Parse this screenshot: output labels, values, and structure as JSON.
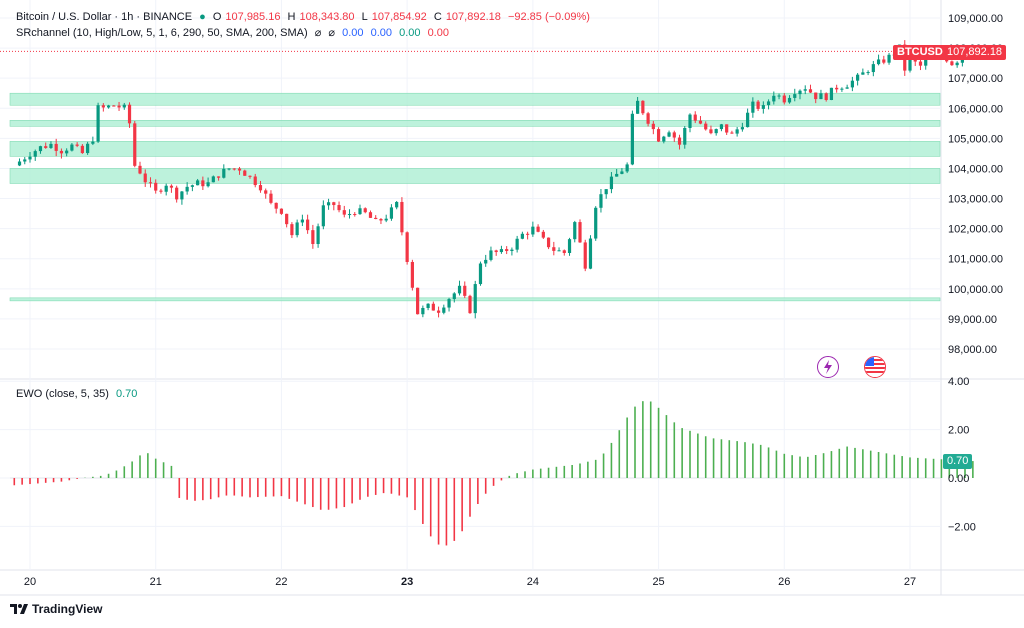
{
  "legend": {
    "symbol": "Bitcoin / U.S. Dollar · 1h · BINANCE",
    "open_label": "O",
    "open": "107,985.16",
    "high_label": "H",
    "high": "108,343.80",
    "low_label": "L",
    "low": "107,854.92",
    "close_label": "C",
    "close": "107,892.18",
    "change": "−92.85 (−0.09%)",
    "sr_label": "SRchannel (10, High/Low, 5, 1, 6, 290, 50, SMA, 200, SMA)",
    "sr_values": [
      "⌀",
      "⌀",
      "0.00",
      "0.00",
      "0.00",
      "0.00"
    ]
  },
  "ewo_legend": {
    "label": "EWO (close, 5, 35)",
    "value": "0.70"
  },
  "badges": {
    "ticker": "BTCUSD",
    "price": "107,892.18",
    "ewo": "0.70"
  },
  "footer": {
    "brand": "TradingView"
  },
  "colors": {
    "up": "#089981",
    "down": "#f23645",
    "ewo_pos": "#4caf50",
    "ewo_neg": "#f23645",
    "zone": "#b2f0d6"
  },
  "chart_data": [
    {
      "type": "candlestick",
      "title": "Bitcoin / U.S. Dollar · 1h · BINANCE",
      "ylim": [
        97500,
        109500
      ],
      "y_ticks": [
        "109,000.00",
        "108,000.00",
        "107,000.00",
        "106,000.00",
        "105,000.00",
        "104,000.00",
        "103,000.00",
        "102,000.00",
        "101,000.00",
        "100,000.00",
        "99,000.00",
        "98,000.00"
      ],
      "y_tick_values": [
        109000,
        108000,
        107000,
        106000,
        105000,
        104000,
        103000,
        102000,
        101000,
        100000,
        99000,
        98000
      ],
      "x_ticks": [
        "20",
        "21",
        "22",
        "23",
        "24",
        "25",
        "26",
        "27"
      ],
      "x_tick_hours": [
        0,
        24,
        48,
        72,
        96,
        120,
        144,
        168
      ],
      "sr_zones": [
        {
          "low": 106100,
          "high": 106500
        },
        {
          "low": 105400,
          "high": 105600
        },
        {
          "low": 104400,
          "high": 104900
        },
        {
          "low": 103500,
          "high": 104000
        },
        {
          "low": 99600,
          "high": 99700
        }
      ],
      "last_price": 107892.18,
      "close_path": [
        [
          -3,
          104100
        ],
        [
          0,
          104500
        ],
        [
          2,
          104700
        ],
        [
          4,
          104800
        ],
        [
          6,
          104600
        ],
        [
          8,
          104750
        ],
        [
          10,
          104500
        ],
        [
          12,
          105000
        ],
        [
          13,
          106000
        ],
        [
          14,
          106000
        ],
        [
          16,
          106100
        ],
        [
          18,
          106000
        ],
        [
          19,
          105500
        ],
        [
          20,
          104100
        ],
        [
          21,
          103900
        ],
        [
          22,
          103600
        ],
        [
          24,
          103200
        ],
        [
          26,
          103500
        ],
        [
          28,
          103100
        ],
        [
          30,
          103400
        ],
        [
          32,
          103500
        ],
        [
          34,
          103500
        ],
        [
          36,
          103800
        ],
        [
          38,
          104000
        ],
        [
          40,
          104000
        ],
        [
          42,
          103700
        ],
        [
          44,
          103400
        ],
        [
          46,
          102800
        ],
        [
          48,
          102600
        ],
        [
          50,
          101800
        ],
        [
          52,
          102400
        ],
        [
          54,
          101500
        ],
        [
          56,
          102700
        ],
        [
          58,
          102800
        ],
        [
          60,
          102400
        ],
        [
          62,
          102600
        ],
        [
          64,
          102500
        ],
        [
          66,
          102200
        ],
        [
          68,
          102400
        ],
        [
          70,
          102800
        ],
        [
          72,
          101000
        ],
        [
          74,
          99200
        ],
        [
          76,
          99400
        ],
        [
          78,
          99300
        ],
        [
          80,
          99700
        ],
        [
          82,
          100000
        ],
        [
          84,
          99300
        ],
        [
          86,
          100900
        ],
        [
          88,
          101200
        ],
        [
          90,
          101200
        ],
        [
          92,
          101400
        ],
        [
          94,
          101800
        ],
        [
          96,
          102000
        ],
        [
          98,
          101600
        ],
        [
          100,
          101300
        ],
        [
          102,
          101200
        ],
        [
          104,
          102200
        ],
        [
          106,
          100800
        ],
        [
          108,
          102800
        ],
        [
          110,
          103400
        ],
        [
          112,
          103800
        ],
        [
          114,
          104100
        ],
        [
          115,
          105700
        ],
        [
          116,
          106200
        ],
        [
          118,
          105600
        ],
        [
          120,
          105000
        ],
        [
          122,
          105300
        ],
        [
          124,
          104800
        ],
        [
          126,
          105800
        ],
        [
          128,
          105500
        ],
        [
          130,
          105100
        ],
        [
          132,
          105400
        ],
        [
          134,
          105100
        ],
        [
          136,
          105500
        ],
        [
          138,
          106100
        ],
        [
          140,
          106000
        ],
        [
          142,
          106500
        ],
        [
          144,
          106300
        ],
        [
          146,
          106600
        ],
        [
          148,
          106700
        ],
        [
          150,
          106400
        ],
        [
          152,
          106400
        ],
        [
          154,
          106700
        ],
        [
          156,
          106800
        ],
        [
          158,
          107000
        ],
        [
          160,
          107300
        ],
        [
          162,
          107500
        ],
        [
          164,
          107700
        ],
        [
          166,
          108000
        ],
        [
          167,
          107300
        ],
        [
          168,
          107600
        ],
        [
          170,
          107400
        ],
        [
          172,
          107800
        ],
        [
          174,
          107800
        ],
        [
          176,
          107500
        ],
        [
          178,
          107700
        ],
        [
          180,
          107900
        ]
      ]
    },
    {
      "type": "bar",
      "title": "EWO (close, 5, 35)",
      "ylim": [
        -3.2,
        4.0
      ],
      "y_ticks": [
        "4.00",
        "2.00",
        "0.00",
        "−2.00"
      ],
      "y_tick_values": [
        4,
        2,
        0,
        -2
      ],
      "last_value": 0.7,
      "value_path": [
        [
          -3,
          -0.3
        ],
        [
          6,
          -0.15
        ],
        [
          10,
          0.0
        ],
        [
          14,
          0.1
        ],
        [
          16,
          0.25
        ],
        [
          19,
          0.6
        ],
        [
          22,
          1.1
        ],
        [
          24,
          0.8
        ],
        [
          27,
          0.5
        ],
        [
          28,
          -0.8
        ],
        [
          31,
          -0.95
        ],
        [
          34,
          -0.9
        ],
        [
          38,
          -0.7
        ],
        [
          42,
          -0.8
        ],
        [
          48,
          -0.75
        ],
        [
          52,
          -1.05
        ],
        [
          56,
          -1.35
        ],
        [
          60,
          -1.2
        ],
        [
          64,
          -0.8
        ],
        [
          68,
          -0.6
        ],
        [
          72,
          -0.8
        ],
        [
          74,
          -1.5
        ],
        [
          76,
          -2.3
        ],
        [
          78,
          -2.75
        ],
        [
          80,
          -2.8
        ],
        [
          82,
          -2.4
        ],
        [
          84,
          -1.6
        ],
        [
          86,
          -0.9
        ],
        [
          88,
          -0.4
        ],
        [
          90,
          -0.1
        ],
        [
          92,
          0.15
        ],
        [
          96,
          0.35
        ],
        [
          100,
          0.45
        ],
        [
          104,
          0.55
        ],
        [
          108,
          0.75
        ],
        [
          110,
          1.1
        ],
        [
          112,
          1.8
        ],
        [
          114,
          2.5
        ],
        [
          116,
          3.1
        ],
        [
          118,
          3.25
        ],
        [
          120,
          2.9
        ],
        [
          124,
          2.1
        ],
        [
          128,
          1.8
        ],
        [
          130,
          1.65
        ],
        [
          136,
          1.5
        ],
        [
          140,
          1.35
        ],
        [
          144,
          1.0
        ],
        [
          148,
          0.85
        ],
        [
          152,
          1.05
        ],
        [
          156,
          1.3
        ],
        [
          160,
          1.15
        ],
        [
          164,
          1.0
        ],
        [
          168,
          0.85
        ],
        [
          172,
          0.8
        ],
        [
          176,
          0.75
        ],
        [
          180,
          0.7
        ]
      ]
    }
  ]
}
